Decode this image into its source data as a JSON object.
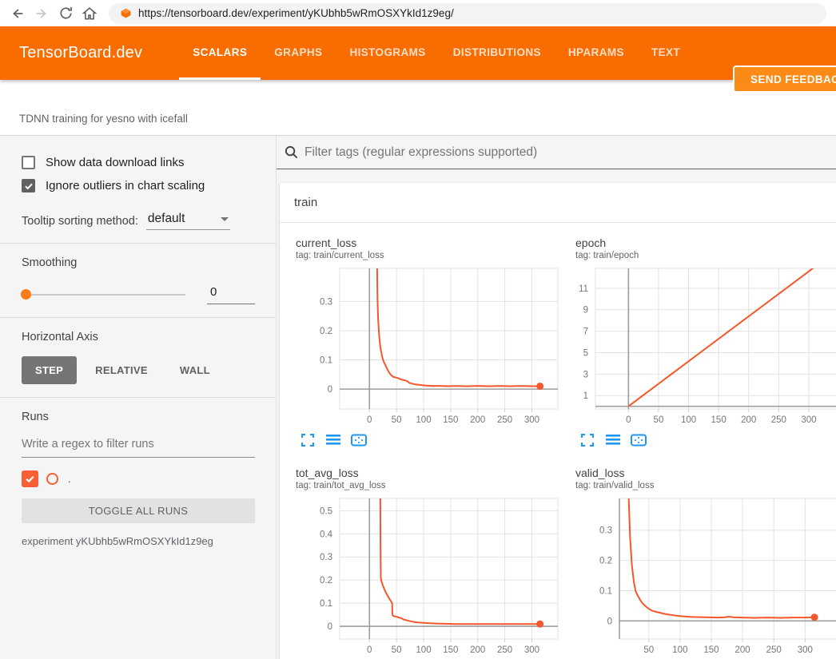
{
  "browser": {
    "url": "https://tensorboard.dev/experiment/yKUbhb5wRmOSXYkId1z9eg/"
  },
  "header": {
    "logo": "TensorBoard.dev",
    "tabs": [
      {
        "label": "SCALARS",
        "active": true
      },
      {
        "label": "GRAPHS",
        "active": false
      },
      {
        "label": "HISTOGRAMS",
        "active": false
      },
      {
        "label": "DISTRIBUTIONS",
        "active": false
      },
      {
        "label": "HPARAMS",
        "active": false
      },
      {
        "label": "TEXT",
        "active": false
      }
    ],
    "feedback_label": "SEND FEEDBACK"
  },
  "experiment_bar": {
    "title": "TDNN training for yesno with icefall"
  },
  "sidebar": {
    "checkboxes": [
      {
        "label": "Show data download links",
        "checked": false
      },
      {
        "label": "Ignore outliers in chart scaling",
        "checked": true
      }
    ],
    "tooltip_sorting": {
      "label": "Tooltip sorting method:",
      "value": "default"
    },
    "smoothing": {
      "label": "Smoothing",
      "value": "0"
    },
    "horizontal_axis": {
      "label": "Horizontal Axis",
      "options": [
        {
          "label": "STEP",
          "active": true
        },
        {
          "label": "RELATIVE",
          "active": false
        },
        {
          "label": "WALL",
          "active": false
        }
      ]
    },
    "runs": {
      "label": "Runs",
      "filter_placeholder": "Write a regex to filter runs",
      "run_name": ".",
      "run_checked": true,
      "toggle_button": "TOGGLE ALL RUNS",
      "experiment_caption": "experiment yKUbhb5wRmOSXYkId1z9eg"
    }
  },
  "main": {
    "filter_placeholder": "Filter tags (regular expressions supported)",
    "group_title": "train"
  },
  "colors": {
    "header_orange": "#f96d00",
    "run_color": "#f4572d",
    "icon_blue": "#2196f3"
  },
  "chart_data": [
    {
      "type": "line",
      "title": "current_loss",
      "tag_line": "tag: train/current_loss",
      "xlim": [
        -55,
        348
      ],
      "ylim": [
        -0.068,
        0.413
      ],
      "xticks": [
        0,
        50,
        100,
        150,
        200,
        250,
        300
      ],
      "yticks": [
        0,
        0.1,
        0.2,
        0.3
      ],
      "zero_x_line": true,
      "dark_left_edge": false,
      "end_dot": true,
      "series": [
        {
          "name": ".",
          "points": [
            [
              13.5,
              0.55
            ],
            [
              14,
              0.45
            ],
            [
              15,
              0.3
            ],
            [
              16,
              0.24
            ],
            [
              18,
              0.18
            ],
            [
              20,
              0.145
            ],
            [
              23,
              0.115
            ],
            [
              26,
              0.095
            ],
            [
              30,
              0.08
            ],
            [
              33,
              0.068
            ],
            [
              36,
              0.058
            ],
            [
              40,
              0.048
            ],
            [
              44,
              0.042
            ],
            [
              48,
              0.04
            ],
            [
              52,
              0.038
            ],
            [
              56,
              0.035
            ],
            [
              60,
              0.032
            ],
            [
              65,
              0.03
            ],
            [
              70,
              0.027
            ],
            [
              73,
              0.022
            ],
            [
              78,
              0.019
            ],
            [
              85,
              0.016
            ],
            [
              95,
              0.014
            ],
            [
              105,
              0.012
            ],
            [
              115,
              0.011
            ],
            [
              130,
              0.011
            ],
            [
              145,
              0.01
            ],
            [
              160,
              0.011
            ],
            [
              180,
              0.01
            ],
            [
              200,
              0.011
            ],
            [
              220,
              0.01
            ],
            [
              240,
              0.011
            ],
            [
              260,
              0.01
            ],
            [
              280,
              0.011
            ],
            [
              300,
              0.01
            ],
            [
              315,
              0.01
            ]
          ]
        }
      ]
    },
    {
      "type": "line",
      "title": "epoch",
      "tag_line": "tag: train/epoch",
      "xlim": [
        -55,
        348
      ],
      "ylim": [
        -0.25,
        12.85
      ],
      "xticks": [
        0,
        50,
        100,
        150,
        200,
        250,
        300
      ],
      "yticks": [
        1,
        3,
        5,
        7,
        9,
        11
      ],
      "zero_x_line": true,
      "dark_left_edge": false,
      "end_dot": false,
      "series": [
        {
          "name": ".",
          "points": [
            [
              0,
              0
            ],
            [
              315,
              13.2
            ]
          ]
        }
      ]
    },
    {
      "type": "line",
      "title": "tot_avg_loss",
      "tag_line": "tag: train/tot_avg_loss",
      "xlim": [
        -55,
        348
      ],
      "ylim": [
        -0.055,
        0.553
      ],
      "xticks": [
        0,
        50,
        100,
        150,
        200,
        250,
        300
      ],
      "yticks": [
        0,
        0.1,
        0.2,
        0.3,
        0.4,
        0.5
      ],
      "zero_x_line": true,
      "dark_left_edge": false,
      "end_dot": true,
      "series": [
        {
          "name": ".",
          "points": [
            [
              20,
              0.6
            ],
            [
              20.5,
              0.35
            ],
            [
              21,
              0.21
            ],
            [
              22,
              0.195
            ],
            [
              25,
              0.175
            ],
            [
              28,
              0.158
            ],
            [
              31,
              0.143
            ],
            [
              34,
              0.13
            ],
            [
              37,
              0.118
            ],
            [
              40,
              0.108
            ],
            [
              42,
              0.098
            ],
            [
              42.5,
              0.05
            ],
            [
              44,
              0.045
            ],
            [
              48,
              0.042
            ],
            [
              52,
              0.04
            ],
            [
              56,
              0.037
            ],
            [
              60,
              0.034
            ],
            [
              62,
              0.03
            ],
            [
              66,
              0.028
            ],
            [
              70,
              0.025
            ],
            [
              76,
              0.022
            ],
            [
              82,
              0.019
            ],
            [
              90,
              0.017
            ],
            [
              100,
              0.015
            ],
            [
              112,
              0.013
            ],
            [
              125,
              0.012
            ],
            [
              140,
              0.011
            ],
            [
              160,
              0.01
            ],
            [
              180,
              0.01
            ],
            [
              200,
              0.01
            ],
            [
              230,
              0.01
            ],
            [
              260,
              0.01
            ],
            [
              290,
              0.01
            ],
            [
              315,
              0.01
            ]
          ]
        }
      ]
    },
    {
      "type": "line",
      "title": "valid_loss",
      "tag_line": "tag: train/valid_loss",
      "xlim": [
        3,
        352
      ],
      "ylim": [
        -0.06,
        0.405
      ],
      "xticks": [
        50,
        100,
        150,
        200,
        250,
        300
      ],
      "yticks": [
        0,
        0.1,
        0.2,
        0.3
      ],
      "zero_x_line": false,
      "dark_left_edge": true,
      "end_dot": true,
      "series": [
        {
          "name": ".",
          "points": [
            [
              17,
              0.55
            ],
            [
              18,
              0.4
            ],
            [
              20,
              0.28
            ],
            [
              23,
              0.185
            ],
            [
              26,
              0.13
            ],
            [
              29,
              0.098
            ],
            [
              32,
              0.085
            ],
            [
              36,
              0.07
            ],
            [
              40,
              0.058
            ],
            [
              45,
              0.048
            ],
            [
              50,
              0.04
            ],
            [
              55,
              0.034
            ],
            [
              60,
              0.031
            ],
            [
              68,
              0.027
            ],
            [
              76,
              0.023
            ],
            [
              85,
              0.02
            ],
            [
              95,
              0.017
            ],
            [
              105,
              0.015
            ],
            [
              120,
              0.013
            ],
            [
              140,
              0.012
            ],
            [
              160,
              0.011
            ],
            [
              172,
              0.012
            ],
            [
              178,
              0.014
            ],
            [
              185,
              0.012
            ],
            [
              200,
              0.011
            ],
            [
              220,
              0.01
            ],
            [
              240,
              0.011
            ],
            [
              260,
              0.01
            ],
            [
              280,
              0.011
            ],
            [
              300,
              0.011
            ],
            [
              315,
              0.012
            ]
          ]
        }
      ]
    }
  ]
}
